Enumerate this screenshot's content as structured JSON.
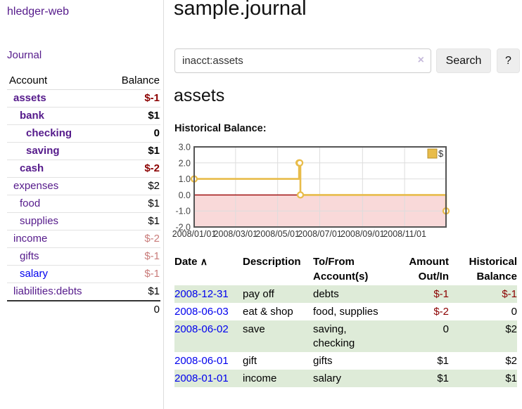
{
  "app": {
    "brand": "hledger-web",
    "nav_journal": "Journal"
  },
  "sidebar": {
    "header": {
      "account": "Account",
      "balance": "Balance"
    },
    "accounts": [
      {
        "name": "assets",
        "level": 1,
        "bold": true,
        "balance": "$-1",
        "negative": true,
        "link_blue": false
      },
      {
        "name": "bank",
        "level": 2,
        "bold": true,
        "balance": "$1",
        "negative": false,
        "link_blue": false
      },
      {
        "name": "checking",
        "level": 3,
        "bold": true,
        "balance": "0",
        "negative": false,
        "link_blue": false
      },
      {
        "name": "saving",
        "level": 3,
        "bold": true,
        "balance": "$1",
        "negative": false,
        "link_blue": false
      },
      {
        "name": "cash",
        "level": 2,
        "bold": true,
        "balance": "$-2",
        "negative": true,
        "link_blue": false
      },
      {
        "name": "expenses",
        "level": 1,
        "bold": false,
        "balance": "$2",
        "negative": false,
        "link_blue": false
      },
      {
        "name": "food",
        "level": 2,
        "bold": false,
        "balance": "$1",
        "negative": false,
        "link_blue": false
      },
      {
        "name": "supplies",
        "level": 2,
        "bold": false,
        "balance": "$1",
        "negative": false,
        "link_blue": false
      },
      {
        "name": "income",
        "level": 1,
        "bold": false,
        "balance": "$-2",
        "negative": true,
        "link_blue": false
      },
      {
        "name": "gifts",
        "level": 2,
        "bold": false,
        "balance": "$-1",
        "negative": true,
        "link_blue": false
      },
      {
        "name": "salary",
        "level": 2,
        "bold": false,
        "balance": "$-1",
        "negative": true,
        "link_blue": true
      },
      {
        "name": "liabilities:debts",
        "level": 1,
        "bold": false,
        "balance": "$1",
        "negative": false,
        "link_blue": false
      }
    ],
    "total": "0"
  },
  "header": {
    "title": "sample.journal"
  },
  "search": {
    "value": "inacct:assets",
    "clear_icon": "×",
    "button_label": "Search",
    "help_label": "?"
  },
  "account_page": {
    "title": "assets",
    "chart_label": "Historical Balance:"
  },
  "chart_data": {
    "type": "line",
    "step": true,
    "title": "Historical Balance:",
    "series": [
      {
        "name": "$",
        "points": [
          [
            "2008-01-01",
            1
          ],
          [
            "2008-06-01",
            2
          ],
          [
            "2008-06-02",
            2
          ],
          [
            "2008-06-03",
            0
          ],
          [
            "2008-12-31",
            -1
          ]
        ]
      }
    ],
    "x_domain": [
      "2008-01-01",
      "2008-12-31"
    ],
    "y_domain": [
      -2,
      3
    ],
    "y_ticks": [
      {
        "label": "3.0",
        "value": 3
      },
      {
        "label": "2.0",
        "value": 2
      },
      {
        "label": "1.0",
        "value": 1
      },
      {
        "label": "0.0",
        "value": 0
      },
      {
        "label": "-1.0",
        "value": -1
      },
      {
        "label": "-2.0",
        "value": -2
      }
    ],
    "x_ticks": [
      {
        "label": "2008/01/01",
        "date": "2008-01-01"
      },
      {
        "label": "2008/03/01",
        "date": "2008-03-01"
      },
      {
        "label": "2008/05/01",
        "date": "2008-05-01"
      },
      {
        "label": "2008/07/01",
        "date": "2008-07-01"
      },
      {
        "label": "2008/09/01",
        "date": "2008-09-01"
      },
      {
        "label": "2008/11/01",
        "date": "2008-11-01"
      }
    ],
    "legend": {
      "label": "$",
      "position": "top-right"
    },
    "grid": true,
    "colors": {
      "line": "#e8bc4a",
      "marker_fill": "#ffffff",
      "legend_swatch": "#e8bc4a",
      "legend_swatch_border": "#b8922d",
      "negative_region": "#f9d9d9",
      "zero_line": "#990000",
      "border": "#555555",
      "gridline": "#dddddd"
    }
  },
  "table": {
    "headers": {
      "date": "Date",
      "sort_icon": "∧",
      "description": "Description",
      "tofrom_line1": "To/From",
      "tofrom_line2": "Account(s)",
      "amount_line1": "Amount",
      "amount_line2": "Out/In",
      "balance_line1": "Historical",
      "balance_line2": "Balance"
    },
    "rows": [
      {
        "date": "2008-12-31",
        "description": "pay off",
        "accounts": "debts",
        "amount": "$-1",
        "amount_negative": true,
        "balance": "$-1",
        "balance_negative": true
      },
      {
        "date": "2008-06-03",
        "description": "eat & shop",
        "accounts": "food, supplies",
        "amount": "$-2",
        "amount_negative": true,
        "balance": "0",
        "balance_negative": false
      },
      {
        "date": "2008-06-02",
        "description": "save",
        "accounts": "saving, checking",
        "amount": "0",
        "amount_negative": false,
        "balance": "$2",
        "balance_negative": false
      },
      {
        "date": "2008-06-01",
        "description": "gift",
        "accounts": "gifts",
        "amount": "$1",
        "amount_negative": false,
        "balance": "$2",
        "balance_negative": false
      },
      {
        "date": "2008-01-01",
        "description": "income",
        "accounts": "salary",
        "amount": "$1",
        "amount_negative": false,
        "balance": "$1",
        "balance_negative": false
      }
    ]
  },
  "colors": {
    "link_purple": "#551A8B",
    "link_blue": "#0000EE",
    "negative_strong": "#8b0000",
    "negative_soft": "#c97c7a",
    "row_stripe_green": "#deebd8"
  }
}
